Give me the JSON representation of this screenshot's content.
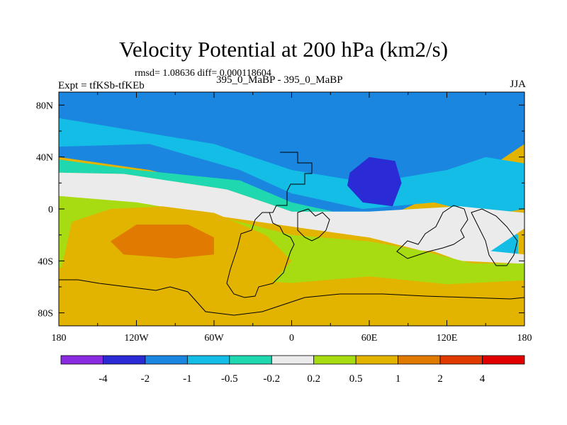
{
  "chart_data": {
    "type": "heatmap",
    "title": "Velocity Potential at 200 hPa (km2/s)",
    "stats": "rmsd= 1.08636 diff= 0.000118604",
    "left_label": "Expt = tfKSb-tfKEb",
    "center_label": "395_0_MaBP - 395_0_MaBP",
    "right_label": "JJA",
    "x_range": [
      -180,
      180
    ],
    "y_range": [
      -90,
      90
    ],
    "x_ticks": [
      {
        "value": -180,
        "label": "180"
      },
      {
        "value": -120,
        "label": "120W"
      },
      {
        "value": -60,
        "label": "60W"
      },
      {
        "value": 0,
        "label": "0"
      },
      {
        "value": 60,
        "label": "60E"
      },
      {
        "value": 120,
        "label": "120E"
      },
      {
        "value": 180,
        "label": "180"
      }
    ],
    "y_ticks": [
      {
        "value": 80,
        "label": "80N"
      },
      {
        "value": 40,
        "label": "40N"
      },
      {
        "value": 0,
        "label": "0"
      },
      {
        "value": -40,
        "label": "40S"
      },
      {
        "value": -80,
        "label": "80S"
      }
    ],
    "colorbar": {
      "levels": [
        "-4",
        "-2",
        "-1",
        "-0.5",
        "-0.2",
        "0.2",
        "0.5",
        "1",
        "2",
        "4"
      ],
      "colors": [
        "#8a2be2",
        "#2b2bd6",
        "#1a86e0",
        "#14bde6",
        "#1fd8b0",
        "#ebebeb",
        "#a8dc12",
        "#e2b400",
        "#e07a00",
        "#e03a00",
        "#e00000"
      ]
    },
    "contour_regions": [
      {
        "level_index": 2,
        "lon_lat": [
          [
            -180,
            90
          ],
          [
            180,
            90
          ],
          [
            180,
            50
          ],
          [
            150,
            30
          ],
          [
            120,
            15
          ],
          [
            60,
            -12
          ],
          [
            0,
            -2
          ],
          [
            -40,
            12
          ],
          [
            -110,
            30
          ],
          [
            -180,
            40
          ]
        ]
      },
      {
        "level_index": 3,
        "lon_lat": [
          [
            -180,
            48
          ],
          [
            -110,
            50
          ],
          [
            -40,
            30
          ],
          [
            0,
            12
          ],
          [
            55,
            0
          ],
          [
            110,
            5
          ],
          [
            150,
            -5
          ],
          [
            180,
            0
          ],
          [
            180,
            35
          ],
          [
            150,
            40
          ],
          [
            120,
            30
          ],
          [
            60,
            20
          ],
          [
            0,
            30
          ],
          [
            -60,
            50
          ],
          [
            -180,
            70
          ]
        ]
      },
      {
        "level_index": 1,
        "lon_lat": [
          [
            45,
            28
          ],
          [
            60,
            40
          ],
          [
            80,
            37
          ],
          [
            85,
            20
          ],
          [
            78,
            2
          ],
          [
            55,
            5
          ],
          [
            43,
            18
          ]
        ]
      },
      {
        "level_index": 4,
        "lon_lat": [
          [
            -180,
            38
          ],
          [
            -120,
            30
          ],
          [
            -40,
            22
          ],
          [
            0,
            5
          ],
          [
            60,
            -8
          ],
          [
            120,
            -8
          ],
          [
            180,
            -12
          ],
          [
            180,
            -3
          ],
          [
            130,
            2
          ],
          [
            60,
            -2
          ],
          [
            0,
            -2
          ],
          [
            -50,
            15
          ],
          [
            -130,
            27
          ],
          [
            -180,
            28
          ]
        ]
      },
      {
        "level_index": 4,
        "lon_lat": [
          [
            -120,
            18
          ],
          [
            -105,
            24
          ],
          [
            -85,
            20
          ],
          [
            -80,
            10
          ],
          [
            -95,
            5
          ],
          [
            -115,
            8
          ]
        ]
      },
      {
        "level_index": 3,
        "lon_lat": [
          [
            103,
            -25
          ],
          [
            115,
            -10
          ],
          [
            135,
            -15
          ],
          [
            150,
            -33
          ],
          [
            175,
            -38
          ],
          [
            175,
            -20
          ],
          [
            150,
            -5
          ],
          [
            125,
            -3
          ],
          [
            105,
            -12
          ]
        ]
      },
      {
        "level_index": 5,
        "lon_lat": [
          [
            -180,
            28
          ],
          [
            -130,
            27
          ],
          [
            -50,
            15
          ],
          [
            0,
            -2
          ],
          [
            60,
            -2
          ],
          [
            130,
            2
          ],
          [
            180,
            -3
          ],
          [
            180,
            -15
          ],
          [
            150,
            -35
          ],
          [
            100,
            -32
          ],
          [
            60,
            -22
          ],
          [
            10,
            -15
          ],
          [
            -60,
            -5
          ],
          [
            -120,
            5
          ],
          [
            -180,
            10
          ]
        ]
      },
      {
        "level_index": 5,
        "lon_lat": [
          [
            97,
            -28
          ],
          [
            130,
            -40
          ],
          [
            175,
            -42
          ],
          [
            180,
            -42
          ],
          [
            180,
            -35
          ],
          [
            150,
            -32
          ],
          [
            125,
            -20
          ],
          [
            105,
            -20
          ]
        ]
      },
      {
        "level_index": 6,
        "lon_lat": [
          [
            -180,
            10
          ],
          [
            -120,
            5
          ],
          [
            -60,
            -5
          ],
          [
            0,
            -20
          ],
          [
            60,
            -25
          ],
          [
            100,
            -32
          ],
          [
            140,
            -42
          ],
          [
            180,
            -42
          ],
          [
            180,
            -55
          ],
          [
            120,
            -58
          ],
          [
            60,
            -52
          ],
          [
            0,
            -57
          ],
          [
            -80,
            -52
          ],
          [
            -180,
            -45
          ]
        ]
      },
      {
        "level_index": 7,
        "lon_lat": [
          [
            -180,
            -55
          ],
          [
            -170,
            -10
          ],
          [
            -140,
            0
          ],
          [
            -100,
            2
          ],
          [
            -60,
            -3
          ],
          [
            -20,
            -20
          ],
          [
            0,
            -40
          ],
          [
            -20,
            -62
          ],
          [
            -60,
            -65
          ],
          [
            -120,
            -58
          ],
          [
            -180,
            -65
          ]
        ]
      },
      {
        "level_index": 8,
        "lon_lat": [
          [
            -140,
            -25
          ],
          [
            -120,
            -12
          ],
          [
            -80,
            -12
          ],
          [
            -60,
            -22
          ],
          [
            -60,
            -35
          ],
          [
            -90,
            -38
          ],
          [
            -130,
            -35
          ]
        ]
      }
    ]
  }
}
